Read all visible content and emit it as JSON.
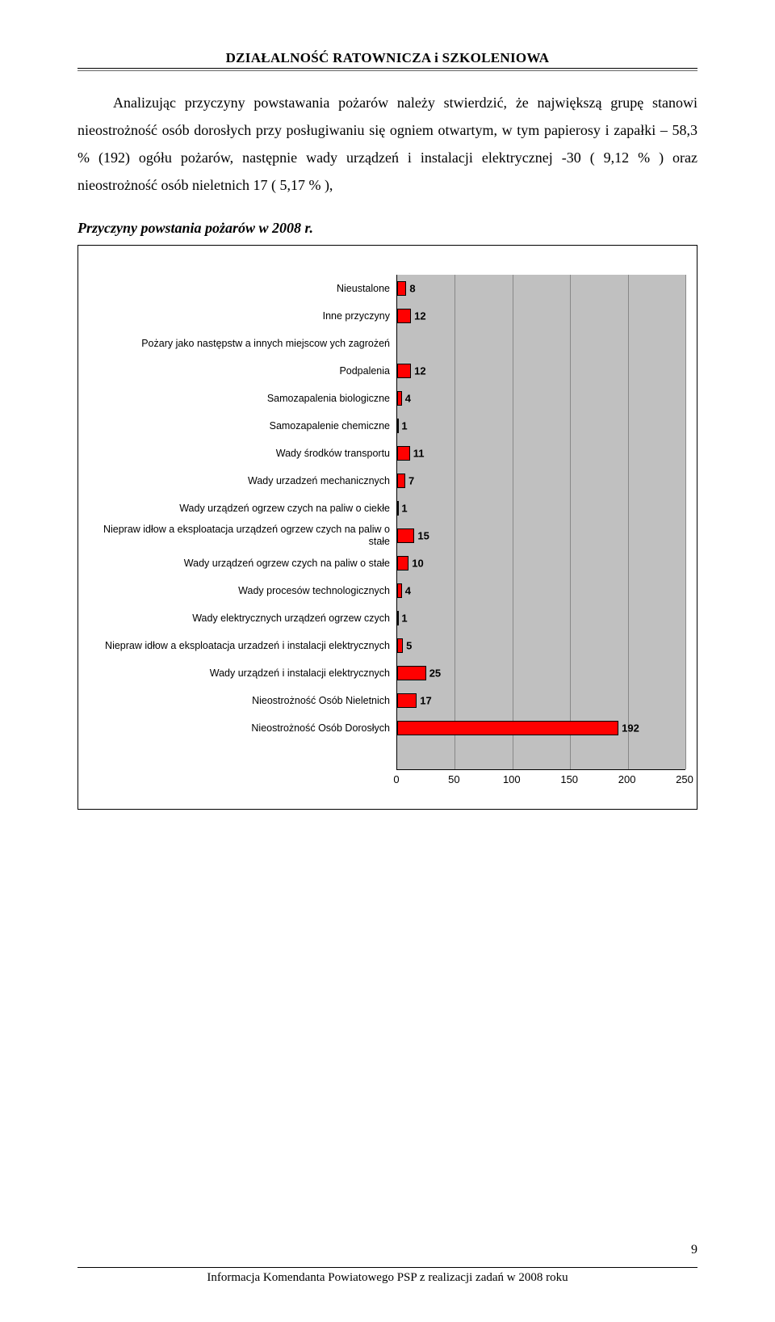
{
  "running_head": "DZIAŁALNOŚĆ RATOWNICZA i  SZKOLENIOWA",
  "p1": "Analizując przyczyny powstawania pożarów należy stwierdzić, że największą grupę stanowi nieostrożność osób dorosłych  przy posługiwaniu się ogniem otwartym, w tym papierosy i zapałki – 58,3 % (192)  ogółu pożarów, następnie wady urządzeń i instalacji elektrycznej  -30     ( 9,12  %  )  oraz  nieostrożność  osób  nieletnich  17  (   5,17 % ),",
  "caption": "Przyczyny powstania pożarów w 2008 r.",
  "chart": {
    "type": "bar",
    "x_max": 250,
    "x_ticks": [
      0,
      50,
      100,
      150,
      200,
      250
    ],
    "bar_color": "#ff0000",
    "plot_bg": "#c0c0c0",
    "grid_color": "#888888",
    "categories": [
      {
        "label": "Nieustalone",
        "value": 8
      },
      {
        "label": "Inne przyczyny",
        "value": 12
      },
      {
        "label": "Pożary jako następstw a innych miejscow ych zagrożeń",
        "value": null
      },
      {
        "label": "Podpalenia",
        "value": 12
      },
      {
        "label": "Samozapalenia biologiczne",
        "value": 4
      },
      {
        "label": "Samozapalenie chemiczne",
        "value": 1
      },
      {
        "label": "Wady środków transportu",
        "value": 11
      },
      {
        "label": "Wady urzadzeń mechanicznych",
        "value": 7
      },
      {
        "label": "Wady urządzeń ogrzew czych na paliw o ciekłe",
        "value": 1
      },
      {
        "label": "Niepraw idłow a eksploatacja urządzeń ogrzew czych na paliw o stałe",
        "value": 15
      },
      {
        "label": "Wady urządzeń ogrzew czych na paliw o stałe",
        "value": 10
      },
      {
        "label": "Wady procesów technologicznych",
        "value": 4
      },
      {
        "label": "Wady elektrycznych urządzeń ogrzew czych",
        "value": 1
      },
      {
        "label": "Niepraw idłow a eksploatacja urzadzeń i instalacji elektrycznych",
        "value": 5
      },
      {
        "label": "Wady urządzeń i instalacji elektrycznych",
        "value": 25
      },
      {
        "label": "Nieostrożność Osób Nieletnich",
        "value": 17
      },
      {
        "label": "Nieostrożność Osób Dorosłych",
        "value": 192
      }
    ]
  },
  "footer": "Informacja Komendanta Powiatowego PSP z realizacji zadań w 2008 roku",
  "page_num": "9"
}
